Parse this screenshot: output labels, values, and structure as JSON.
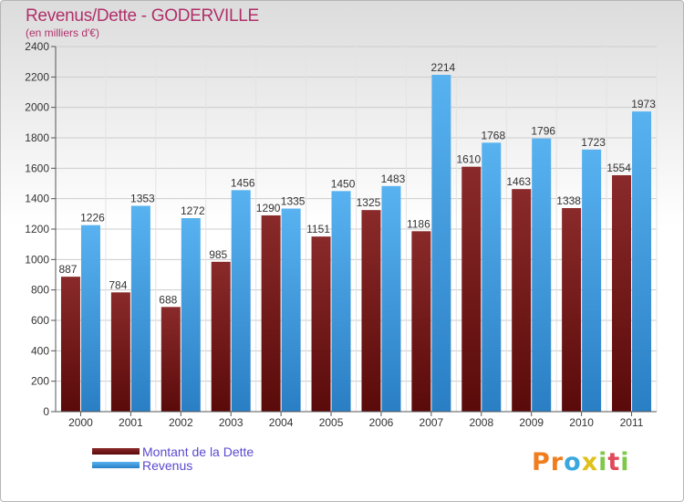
{
  "title": "Revenus/Dette - GODERVILLE",
  "subtitle": "(en milliers d'€)",
  "logo": {
    "letters": [
      "P",
      "r",
      "o",
      "x",
      "i",
      "t",
      "i"
    ],
    "colors": [
      "#f07e1e",
      "#f07e1e",
      "#3aa7de",
      "#e0c01a",
      "#7fc84a",
      "#e04a5a",
      "#7fc84a"
    ]
  },
  "chart_data": {
    "type": "bar",
    "title": "Revenus/Dette - GODERVILLE",
    "ylabel": "(en milliers d'€)",
    "xlabel": "",
    "ylim": [
      0,
      2400
    ],
    "yticks": [
      0,
      200,
      400,
      600,
      800,
      1000,
      1200,
      1400,
      1600,
      1800,
      2000,
      2200,
      2400
    ],
    "grid": true,
    "categories": [
      "2000",
      "2001",
      "2002",
      "2003",
      "2004",
      "2005",
      "2006",
      "2007",
      "2008",
      "2009",
      "2010",
      "2011"
    ],
    "series": [
      {
        "name": "Montant de la Dette",
        "color": "#7a1c1c",
        "labels": [
          "887",
          "784",
          "688",
          "985",
          "1290",
          "1151",
          "1325",
          "1186",
          "1610",
          "1463",
          "1338",
          "1554"
        ],
        "values": [
          887,
          784,
          688,
          985,
          1290,
          1151,
          1325,
          1186,
          1610,
          1463,
          1338,
          1554
        ]
      },
      {
        "name": "Revenus",
        "color": "#3d9ee8",
        "labels": [
          "1226",
          "1353",
          "1272",
          "1456",
          "1335",
          "1450",
          "1483",
          "2214",
          "1768",
          "1796",
          "1723",
          "1973"
        ],
        "values": [
          1226,
          1353,
          1272,
          1456,
          1335,
          1450,
          1483,
          2214,
          1768,
          1796,
          1723,
          1973
        ]
      }
    ],
    "legend": "bottom-left"
  }
}
